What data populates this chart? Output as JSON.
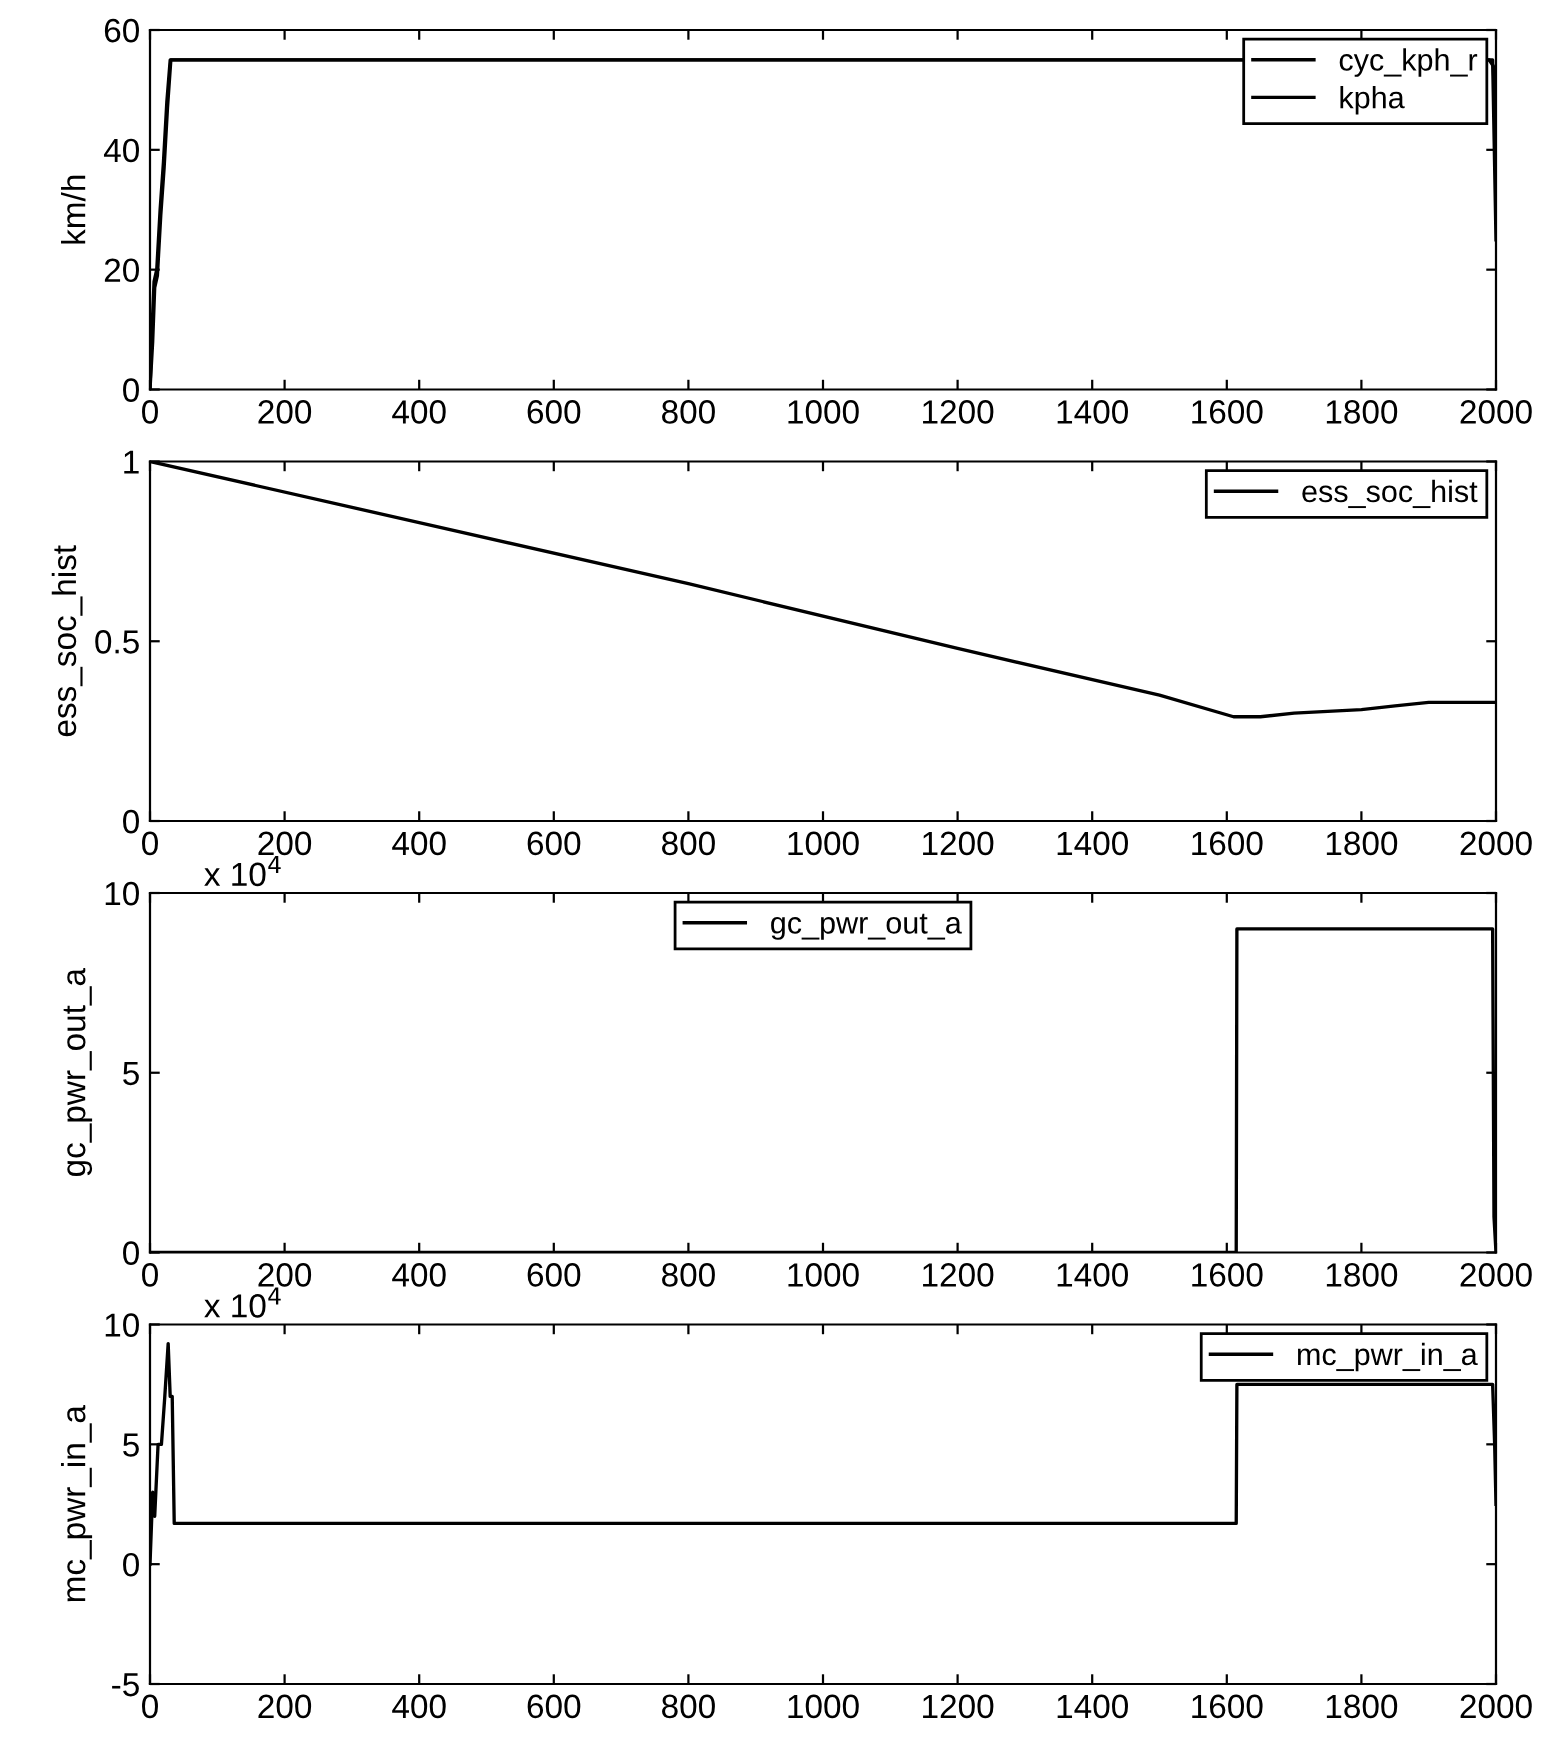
{
  "chart_data": [
    {
      "type": "line",
      "ylabel": "km/h",
      "xlim": [
        0,
        2000
      ],
      "xticks": [
        0,
        200,
        400,
        600,
        800,
        1000,
        1200,
        1400,
        1600,
        1800,
        2000
      ],
      "ylim": [
        0,
        60
      ],
      "yticks": [
        0,
        20,
        40,
        60
      ],
      "legend": "top right",
      "grid": false,
      "series": [
        {
          "name": "cyc_kph_r",
          "color": "#000000",
          "x": [
            0,
            3,
            6,
            10,
            15,
            20,
            25,
            30,
            1990,
            1995,
            2000
          ],
          "values": [
            0,
            10,
            18,
            20,
            30,
            38,
            48,
            55,
            55,
            55,
            25
          ]
        },
        {
          "name": "kpha",
          "color": "#000000",
          "x": [
            0,
            4,
            7,
            11,
            16,
            21,
            26,
            31,
            1990,
            1996,
            2000
          ],
          "values": [
            0,
            8,
            17,
            19,
            29,
            37,
            47,
            55,
            55,
            54,
            40
          ]
        }
      ]
    },
    {
      "type": "line",
      "ylabel": "ess_soc_hist",
      "xlim": [
        0,
        2000
      ],
      "xticks": [
        0,
        200,
        400,
        600,
        800,
        1000,
        1200,
        1400,
        1600,
        1800,
        2000
      ],
      "ylim": [
        0,
        1
      ],
      "yticks": [
        0,
        0.5,
        1
      ],
      "legend": "top right",
      "grid": false,
      "series": [
        {
          "name": "ess_soc_hist",
          "color": "#000000",
          "x": [
            0,
            400,
            800,
            1200,
            1500,
            1610,
            1650,
            1700,
            1800,
            1850,
            1900,
            2000
          ],
          "values": [
            1,
            0.83,
            0.66,
            0.48,
            0.35,
            0.29,
            0.29,
            0.3,
            0.31,
            0.32,
            0.33,
            0.33
          ]
        }
      ]
    },
    {
      "type": "line",
      "ylabel": "gc_pwr_out_a",
      "annotations": [
        "x 10$^{4}$"
      ],
      "xlim": [
        0,
        2000
      ],
      "xticks": [
        0,
        200,
        400,
        600,
        800,
        1000,
        1200,
        1400,
        1600,
        1800,
        2000
      ],
      "ylim": [
        0,
        10
      ],
      "yticks": [
        0,
        5,
        10
      ],
      "legend": "top",
      "grid": false,
      "series": [
        {
          "name": "gc_pwr_out_a",
          "color": "#000000",
          "x": [
            0,
            1614,
            1615,
            1995,
            1997,
            2000
          ],
          "values": [
            0,
            0,
            9,
            9,
            1,
            0
          ]
        }
      ]
    },
    {
      "type": "line",
      "ylabel": "mc_pwr_in_a",
      "annotations": [
        "x 10$^{4}$"
      ],
      "xlim": [
        0,
        2000
      ],
      "xticks": [
        0,
        200,
        400,
        600,
        800,
        1000,
        1200,
        1400,
        1600,
        1800,
        2000
      ],
      "ylim": [
        -5,
        10
      ],
      "yticks": [
        -5,
        0,
        5,
        10
      ],
      "legend": "top right",
      "grid": false,
      "series": [
        {
          "name": "mc_pwr_in_a",
          "color": "#000000",
          "x": [
            0,
            4,
            7,
            12,
            17,
            22,
            27,
            30,
            33,
            36,
            1614,
            1615,
            1995,
            1998,
            2000
          ],
          "values": [
            0,
            3,
            2,
            5,
            5,
            7,
            9.2,
            7,
            7,
            1.7,
            1.7,
            7.5,
            7.5,
            5,
            2.5
          ]
        }
      ]
    }
  ]
}
